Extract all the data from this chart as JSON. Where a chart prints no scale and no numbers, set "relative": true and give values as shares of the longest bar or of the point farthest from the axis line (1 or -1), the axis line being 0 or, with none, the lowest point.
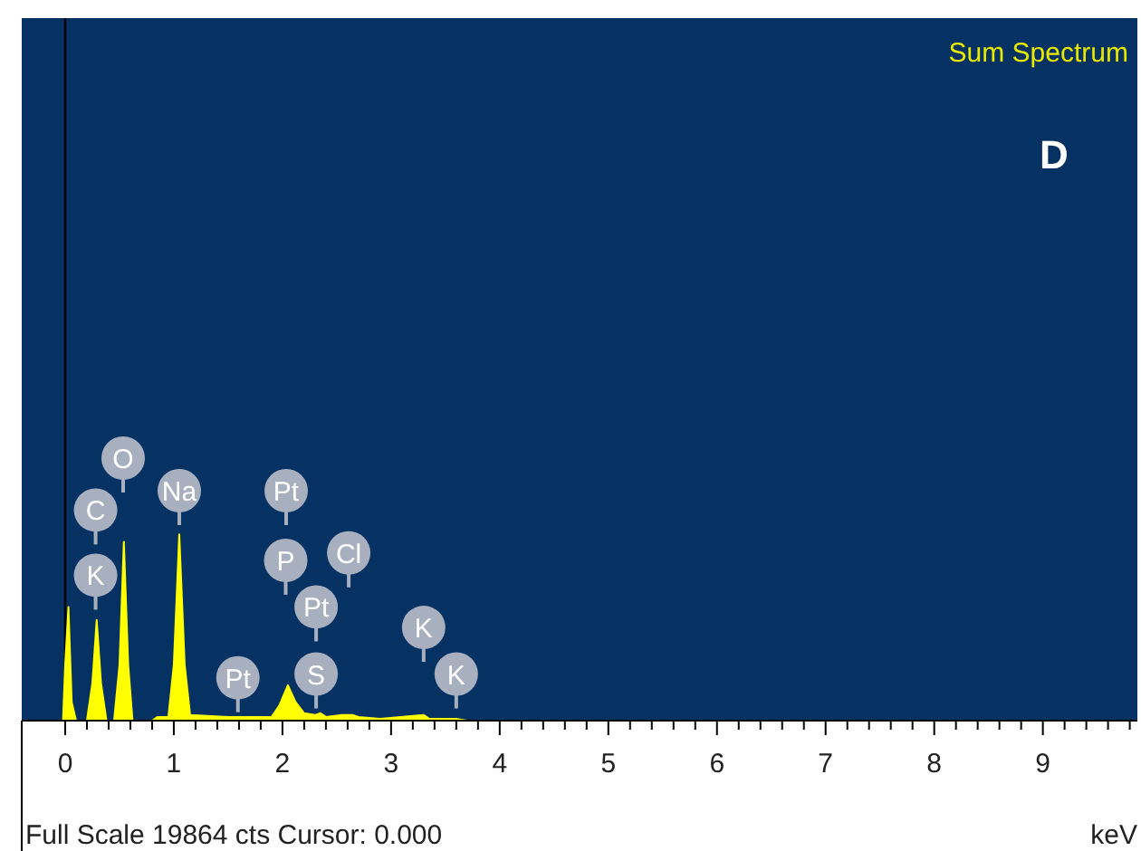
{
  "chart_data": {
    "type": "area",
    "title": "Sum Spectrum",
    "xlabel": "keV",
    "relative": true,
    "x": [
      -0.02,
      0.0,
      0.03,
      0.06,
      0.1,
      0.2,
      0.25,
      0.29,
      0.33,
      0.38,
      0.45,
      0.5,
      0.54,
      0.58,
      0.62,
      0.8,
      0.85,
      0.95,
      1.0,
      1.05,
      1.1,
      1.15,
      1.5,
      1.9,
      1.97,
      2.05,
      2.12,
      2.2,
      2.3,
      2.35,
      2.4,
      2.55,
      2.65,
      2.7,
      2.9,
      3.3,
      3.35,
      3.6,
      3.7,
      9.8
    ],
    "series": [
      {
        "color": "#ffff00",
        "values": [
          0,
          0.3,
          0.61,
          0.1,
          0,
          0,
          0.2,
          0.54,
          0.2,
          0,
          0,
          0.3,
          0.96,
          0.3,
          0,
          0,
          0.02,
          0.02,
          0.3,
          1.0,
          0.3,
          0.03,
          0.02,
          0.02,
          0.08,
          0.19,
          0.1,
          0.04,
          0.03,
          0.04,
          0.02,
          0.03,
          0.03,
          0.02,
          0.01,
          0.03,
          0.01,
          0.01,
          0,
          0
        ]
      }
    ],
    "xlim": [
      -0.4,
      9.87
    ],
    "xticks": [
      0,
      {
        "value": 0.2,
        "label": null
      },
      {
        "value": 0.4,
        "label": null
      },
      {
        "value": 0.6,
        "label": null
      },
      {
        "value": 0.8,
        "label": null
      },
      1,
      {
        "value": 1.2,
        "label": null
      },
      {
        "value": 1.4,
        "label": null
      },
      {
        "value": 1.6,
        "label": null
      },
      {
        "value": 1.8,
        "label": null
      },
      2,
      {
        "value": 2.2,
        "label": null
      },
      {
        "value": 2.4,
        "label": null
      },
      {
        "value": 2.6,
        "label": null
      },
      {
        "value": 2.8,
        "label": null
      },
      3,
      {
        "value": 3.2,
        "label": null
      },
      {
        "value": 3.4,
        "label": null
      },
      {
        "value": 3.6,
        "label": null
      },
      {
        "value": 3.8,
        "label": null
      },
      4,
      {
        "value": 4.2,
        "label": null
      },
      {
        "value": 4.4,
        "label": null
      },
      {
        "value": 4.6,
        "label": null
      },
      {
        "value": 4.8,
        "label": null
      },
      5,
      {
        "value": 5.2,
        "label": null
      },
      {
        "value": 5.4,
        "label": null
      },
      {
        "value": 5.6,
        "label": null
      },
      {
        "value": 5.8,
        "label": null
      },
      6,
      {
        "value": 6.2,
        "label": null
      },
      {
        "value": 6.4,
        "label": null
      },
      {
        "value": 6.6,
        "label": null
      },
      {
        "value": 6.8,
        "label": null
      },
      7,
      {
        "value": 7.2,
        "label": null
      },
      {
        "value": 7.4,
        "label": null
      },
      {
        "value": 7.6,
        "label": null
      },
      {
        "value": 7.8,
        "label": null
      },
      8,
      {
        "value": 8.2,
        "label": null
      },
      {
        "value": 8.4,
        "label": null
      },
      {
        "value": 8.6,
        "label": null
      },
      {
        "value": 8.8,
        "label": null
      },
      9,
      {
        "value": 9.2,
        "label": null
      },
      {
        "value": 9.4,
        "label": null
      },
      {
        "value": 9.6,
        "label": null
      },
      {
        "value": 9.8,
        "label": null
      }
    ],
    "ref_lines": [
      {
        "axis": "x",
        "value": 0,
        "color": "#000000"
      }
    ],
    "annotations": [
      "D",
      "Full Scale 19864 cts Cursor: 0.000",
      "O",
      "Na",
      "Pt",
      {
        "text": "C",
        "x": 0.28,
        "y": 1.13
      },
      {
        "text": "K",
        "x": 0.28,
        "y": 0.78
      },
      {
        "text": "Pt",
        "x": 1.59,
        "y": 0.23
      },
      {
        "text": "P",
        "x": 2.03,
        "y": 0.86
      },
      {
        "text": "Pt",
        "x": 2.31,
        "y": 0.61
      },
      {
        "text": "S",
        "x": 2.31,
        "y": 0.25
      },
      {
        "text": "Cl",
        "x": 2.61,
        "y": 0.9
      },
      {
        "text": "K",
        "x": 3.3,
        "y": 0.5
      },
      {
        "text": "K",
        "x": 3.6,
        "y": 0.25
      }
    ]
  }
}
